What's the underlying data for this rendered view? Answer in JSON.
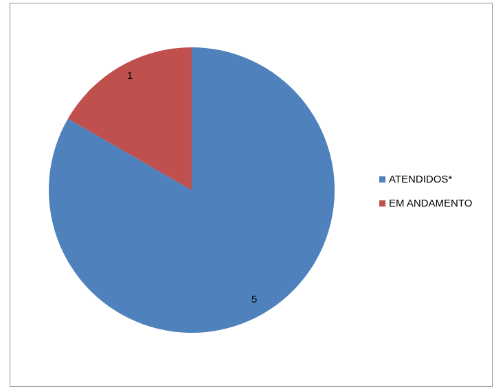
{
  "chart_data": {
    "type": "pie",
    "categories": [
      "ATENDIDOS*",
      "EM ANDAMENTO"
    ],
    "values": [
      5,
      1
    ],
    "data_labels": [
      "5",
      "1"
    ],
    "colors": [
      "#4f81bd",
      "#c0504d"
    ],
    "start_angle_deg": 0,
    "direction": "clockwise",
    "legend_position": "right"
  }
}
